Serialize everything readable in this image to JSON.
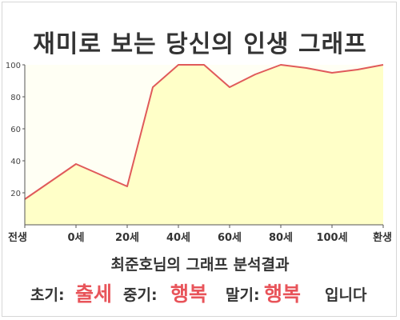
{
  "title": "재미로 보는 당신의 인생 그래프",
  "caption": "최준호님의 그래프 분석결과",
  "verdict": {
    "early_label": "초기:",
    "early_value": "출세",
    "mid_label": "중기:",
    "mid_value": "행복",
    "late_label": "말기:",
    "late_value": "행복",
    "suffix": "입니다"
  },
  "colors": {
    "line": "#e05a5a",
    "fill": "#ffffc8",
    "highlight": "#e8545a",
    "text": "#333333"
  },
  "chart_data": {
    "type": "area",
    "title": "재미로 보는 당신의 인생 그래프",
    "xlabel": "",
    "ylabel": "",
    "ylim": [
      0,
      100
    ],
    "y_ticks": [
      20,
      40,
      60,
      80,
      100
    ],
    "x_ticks": [
      {
        "x": 0,
        "label": "전생"
      },
      {
        "x": 1,
        "label": "0세"
      },
      {
        "x": 2,
        "label": "20세"
      },
      {
        "x": 3,
        "label": "40세"
      },
      {
        "x": 4,
        "label": "60세"
      },
      {
        "x": 5,
        "label": "80세"
      },
      {
        "x": 6,
        "label": "100세"
      },
      {
        "x": 7,
        "label": "환생"
      }
    ],
    "xlim": [
      0,
      7
    ],
    "grid": false,
    "series": [
      {
        "x": [
          0,
          0.5,
          1.0,
          1.5,
          2.0,
          2.5,
          3.0,
          3.5,
          4.0,
          4.5,
          5.0,
          5.5,
          6.0,
          6.5,
          7.0
        ],
        "values": [
          16,
          27,
          38,
          31,
          24,
          86,
          100,
          100,
          86,
          94,
          100,
          98,
          95,
          97,
          100
        ]
      }
    ]
  }
}
